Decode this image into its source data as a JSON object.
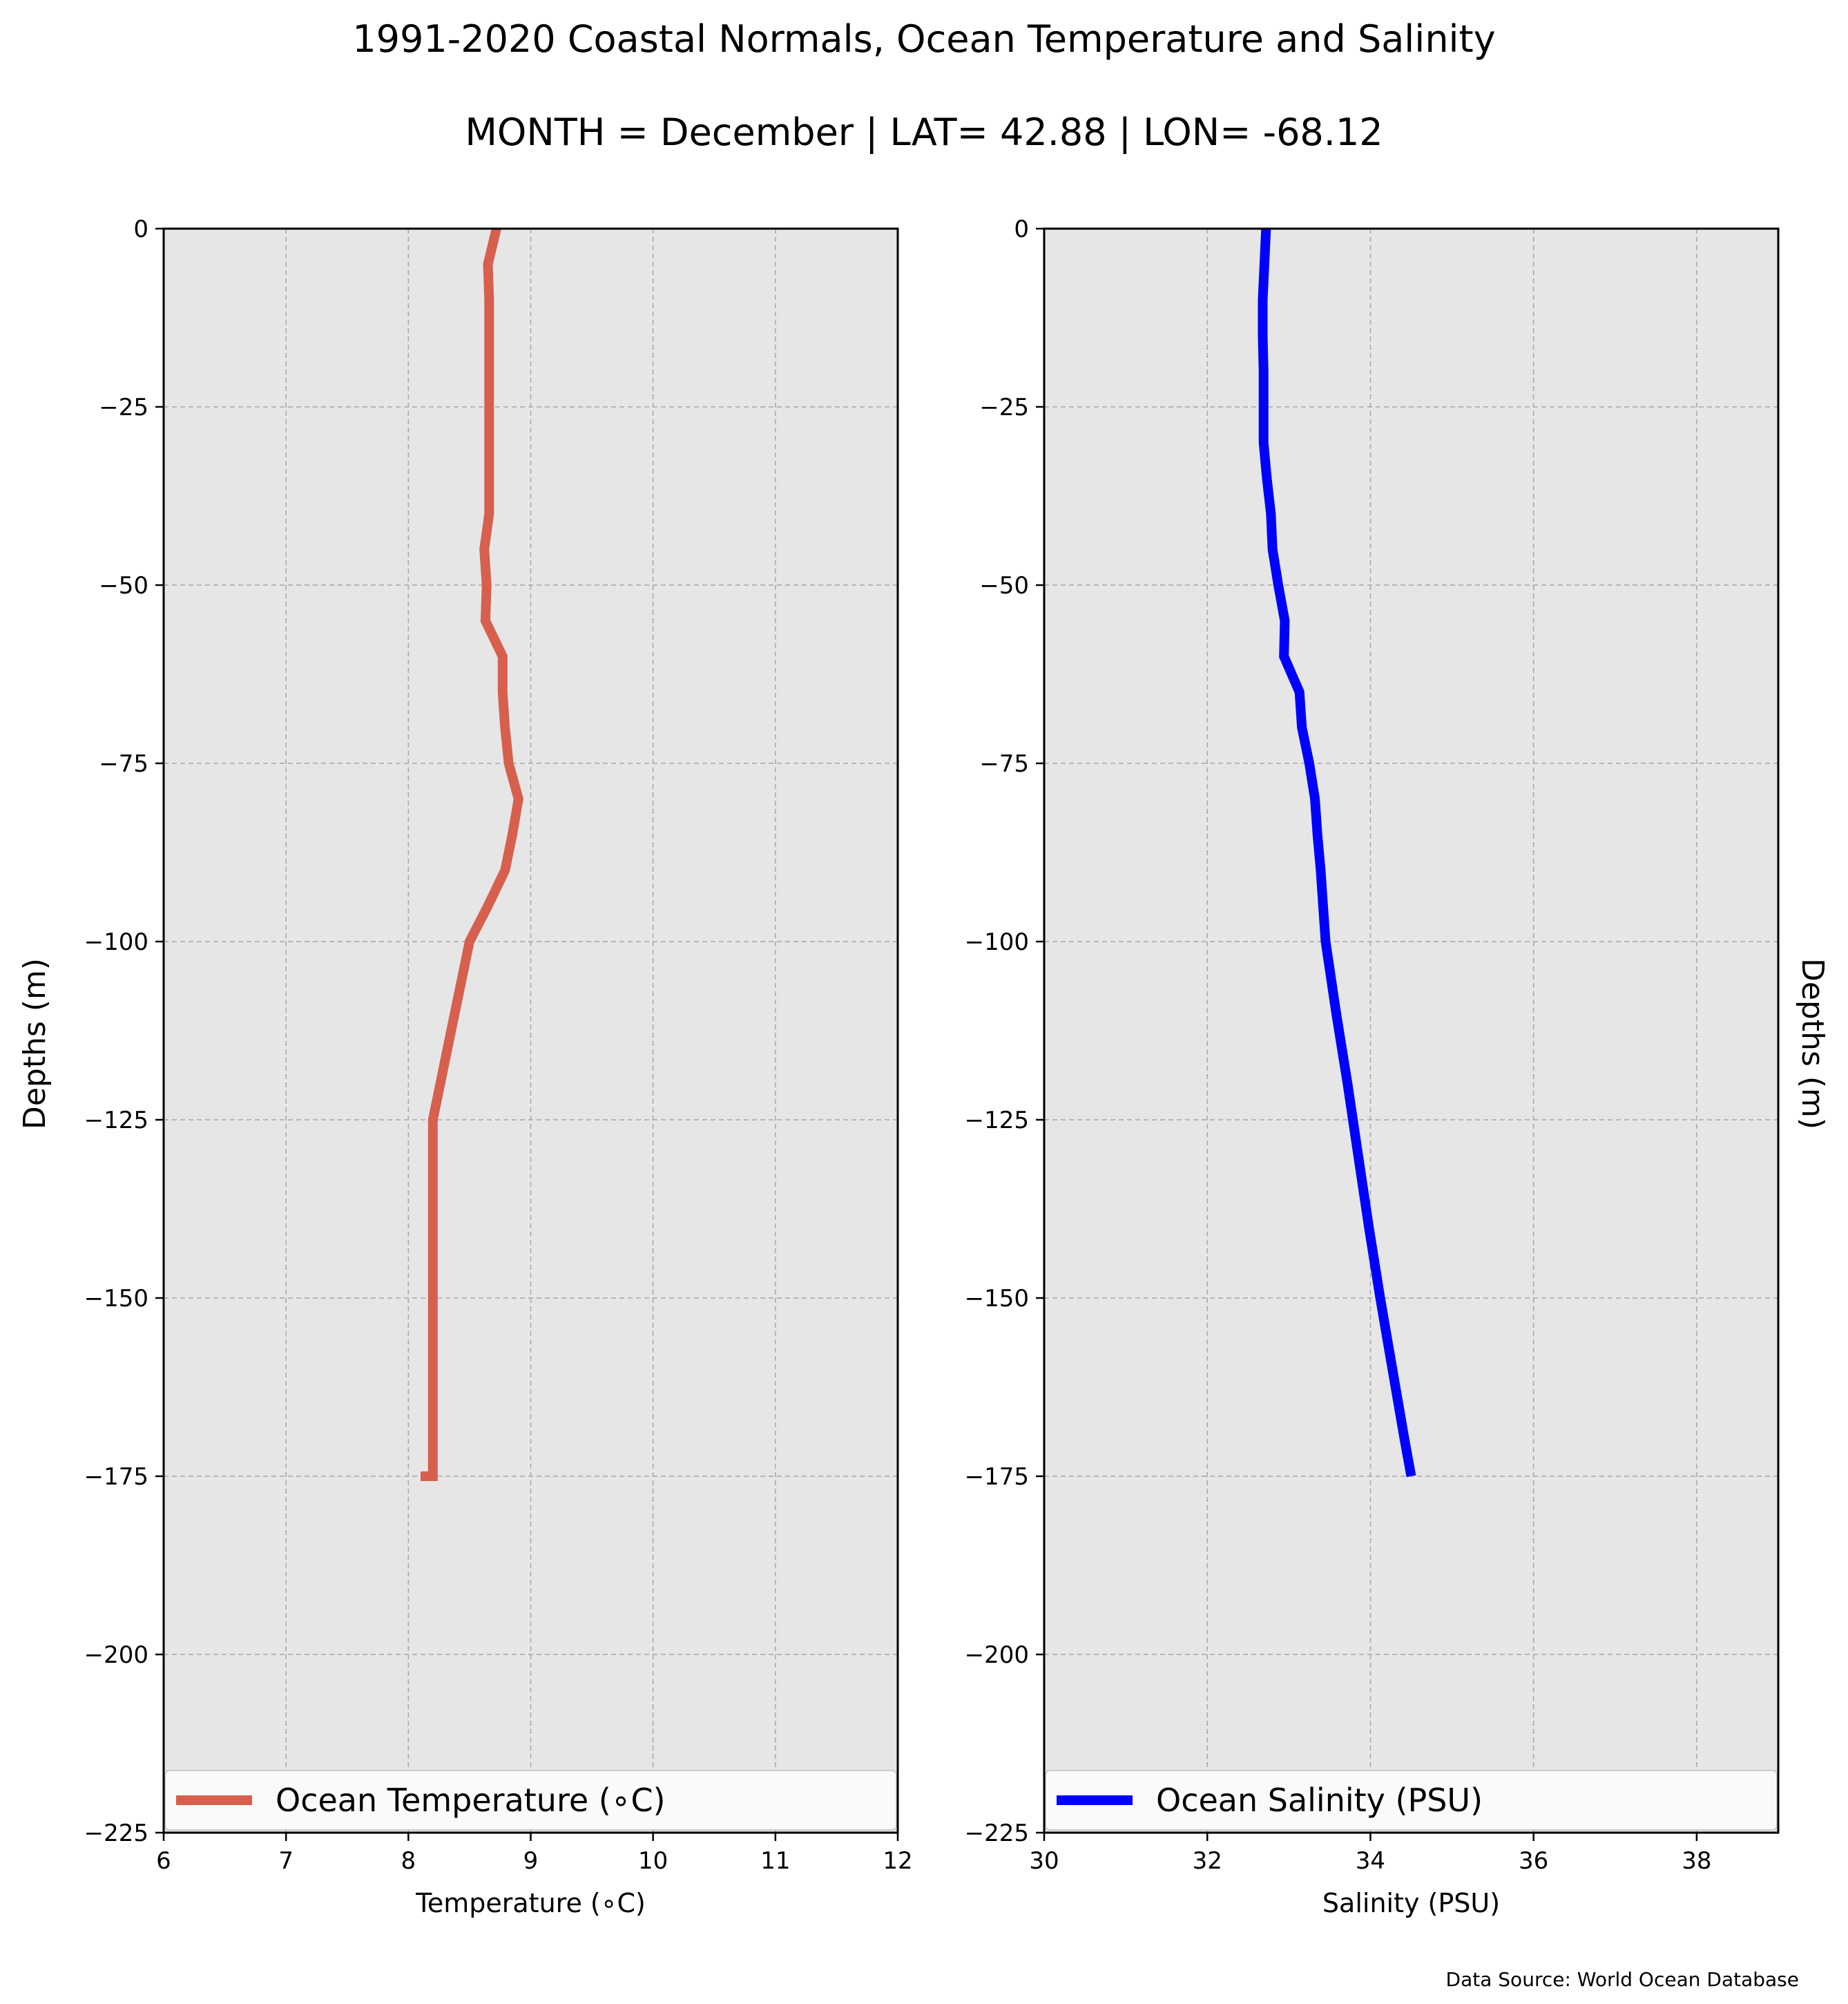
{
  "title": "1991-2020 Coastal Normals, Ocean Temperature and Salinity",
  "subtitle": "MONTH = December | LAT= 42.88 | LON= -68.12",
  "source_note": "Data Source: World Ocean Database",
  "chart_data": [
    {
      "type": "line",
      "name": "temperature-panel",
      "xlabel": "Temperature ($^\\circ$C)",
      "xlabel_display": "Temperature (∘C)",
      "ylabel": "Depths (m)",
      "xlim": [
        6,
        12
      ],
      "ylim": [
        -225,
        0
      ],
      "xticks": [
        6,
        7,
        8,
        9,
        10,
        11,
        12
      ],
      "xtick_labels": [
        "6",
        "7",
        "8",
        "9",
        "10",
        "11",
        "12"
      ],
      "yticks": [
        0,
        -25,
        -50,
        -75,
        -100,
        -125,
        -150,
        -175,
        -200,
        -225
      ],
      "ytick_labels": [
        "0",
        "−25",
        "−50",
        "−75",
        "−100",
        "−125",
        "−150",
        "−175",
        "−200",
        "−225"
      ],
      "grid": true,
      "legend": "bottom",
      "series": [
        {
          "name": "Ocean Temperature (∘C)",
          "color": "#d6604d",
          "x": [
            8.72,
            8.65,
            8.66,
            8.66,
            8.66,
            8.66,
            8.66,
            8.66,
            8.66,
            8.62,
            8.64,
            8.63,
            8.77,
            8.77,
            8.79,
            8.82,
            8.9,
            8.85,
            8.79,
            8.65,
            8.5,
            8.35,
            8.2,
            8.2,
            8.2,
            8.2,
            8.2,
            8.18,
            8.14,
            8.1
          ],
          "y": [
            0,
            -5,
            -10,
            -15,
            -20,
            -25,
            -30,
            -35,
            -40,
            -45,
            -50,
            -55,
            -60,
            -65,
            -70,
            -75,
            -80,
            -85,
            -90,
            -95,
            -100,
            -112.5,
            -125,
            -137.5,
            -150,
            -162.5,
            -175,
            -175,
            -175,
            -175
          ]
        }
      ]
    },
    {
      "type": "line",
      "name": "salinity-panel",
      "xlabel": "Salinity (PSU)",
      "ylabel": "Depths (m)",
      "xlim": [
        30,
        39
      ],
      "ylim": [
        -225,
        0
      ],
      "xticks": [
        30,
        32,
        34,
        36,
        38
      ],
      "xtick_labels": [
        "30",
        "32",
        "34",
        "36",
        "38"
      ],
      "yticks": [
        0,
        -25,
        -50,
        -75,
        -100,
        -125,
        -150,
        -175,
        -200,
        -225
      ],
      "ytick_labels": [
        "0",
        "−25",
        "−50",
        "−75",
        "−100",
        "−125",
        "−150",
        "−175",
        "−200",
        "−225"
      ],
      "grid": true,
      "legend": "bottom",
      "series": [
        {
          "name": "Ocean Salinity (PSU)",
          "color": "#0000ff",
          "x": [
            32.72,
            32.7,
            32.68,
            32.68,
            32.69,
            32.69,
            32.69,
            32.73,
            32.78,
            32.8,
            32.87,
            32.95,
            32.94,
            33.13,
            33.16,
            33.25,
            33.32,
            33.35,
            33.39,
            33.42,
            33.45,
            33.58,
            33.72,
            33.85,
            33.98,
            34.12,
            34.27,
            34.42,
            34.5
          ],
          "y": [
            0,
            -5,
            -10,
            -15,
            -20,
            -25,
            -30,
            -35,
            -40,
            -45,
            -50,
            -55,
            -60,
            -65,
            -70,
            -75,
            -80,
            -85,
            -90,
            -95,
            -100,
            -110,
            -120,
            -130,
            -140,
            -150,
            -160,
            -170,
            -175
          ]
        }
      ]
    }
  ]
}
